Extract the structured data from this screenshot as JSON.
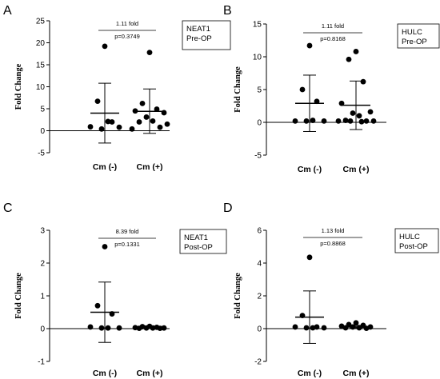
{
  "chart_data": [
    {
      "type": "scatter",
      "panel": "A",
      "ylabel": "Fold Change",
      "ylim": [
        -5,
        25
      ],
      "yticks": [
        -5,
        0,
        5,
        10,
        15,
        20,
        25
      ],
      "categories": [
        "Cm (-)",
        "Cm (+)"
      ],
      "legend": "NEAT1\nPre-OP",
      "annotation_fold": "1.11 fold",
      "annotation_p": "p=0.3749",
      "series": [
        {
          "category": "Cm (-)",
          "mean": 4.0,
          "sd_low": -2.8,
          "sd_high": 10.8,
          "values": [
            19.2,
            6.7,
            2.0,
            0.9,
            0.8,
            0.4,
            2.1
          ]
        },
        {
          "category": "Cm (+)",
          "mean": 4.4,
          "sd_low": -0.6,
          "sd_high": 9.5,
          "values": [
            17.8,
            6.2,
            4.9,
            4.5,
            4.1,
            3.1,
            2.2,
            2.0,
            0.8,
            0.4,
            1.5
          ]
        }
      ]
    },
    {
      "type": "scatter",
      "panel": "B",
      "ylabel": "Fold Change",
      "ylim": [
        -5,
        15
      ],
      "yticks": [
        -5,
        0,
        5,
        10,
        15
      ],
      "categories": [
        "Cm (-)",
        "Cm (+)"
      ],
      "legend": "HULC\nPre-OP",
      "annotation_fold": "1.11 fold",
      "annotation_p": "p=0.8168",
      "series": [
        {
          "category": "Cm (-)",
          "mean": 2.9,
          "sd_low": -1.4,
          "sd_high": 7.2,
          "values": [
            11.7,
            5.0,
            3.2,
            0.2,
            0.2,
            0.2,
            0.3
          ]
        },
        {
          "category": "Cm (+)",
          "mean": 2.6,
          "sd_low": -1.1,
          "sd_high": 6.3,
          "values": [
            10.8,
            9.6,
            6.2,
            2.9,
            1.6,
            1.4,
            1.0,
            0.3,
            0.2,
            0.2,
            0.2,
            0.2,
            0.1
          ]
        }
      ]
    },
    {
      "type": "scatter",
      "panel": "C",
      "ylabel": "Fold Change",
      "ylim": [
        -1,
        3
      ],
      "yticks": [
        -1,
        0,
        1,
        2,
        3
      ],
      "categories": [
        "Cm (-)",
        "Cm (+)"
      ],
      "legend": "NEAT1\nPost-OP",
      "annotation_fold": "8.39 fold",
      "annotation_p": "p=0.1331",
      "series": [
        {
          "category": "Cm (-)",
          "mean": 0.5,
          "sd_low": -0.42,
          "sd_high": 1.42,
          "values": [
            2.5,
            0.7,
            0.45,
            0.05,
            0.02,
            0.02,
            0.02
          ]
        },
        {
          "category": "Cm (+)",
          "mean": 0.06,
          "sd_low": 0.05,
          "sd_high": 0.08,
          "values": [
            0.07,
            0.06,
            0.04,
            0.03,
            0.02,
            0.02,
            0.02,
            0.01,
            0.01
          ]
        }
      ]
    },
    {
      "type": "scatter",
      "panel": "D",
      "ylabel": "Fold Change",
      "ylim": [
        -2,
        6
      ],
      "yticks": [
        -2,
        0,
        2,
        4,
        6
      ],
      "categories": [
        "Cm (-)",
        "Cm (+)"
      ],
      "legend": "HULC\nPost-OP",
      "annotation_fold": "1.13 fold",
      "annotation_p": "p=0.8868",
      "series": [
        {
          "category": "Cm (-)",
          "mean": 0.7,
          "sd_low": -0.9,
          "sd_high": 2.3,
          "values": [
            4.35,
            0.8,
            0.1,
            0.1,
            0.05,
            0.05,
            0.05
          ]
        },
        {
          "category": "Cm (+)",
          "mean": 0.1,
          "sd_low": 0.03,
          "sd_high": 0.2,
          "values": [
            0.35,
            0.25,
            0.2,
            0.15,
            0.1,
            0.1,
            0.05,
            0.05,
            0.02
          ]
        }
      ]
    }
  ]
}
